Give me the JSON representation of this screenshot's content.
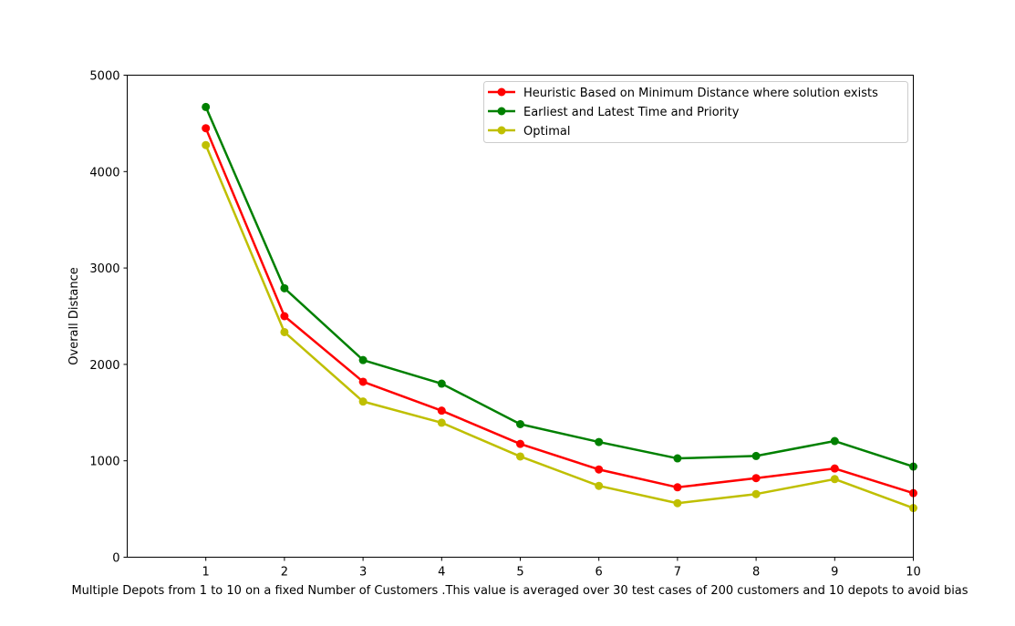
{
  "chart_data": {
    "type": "line",
    "title": "",
    "xlabel": "Multiple Depots from 1 to 10 on a fixed Number of Customers .This value is averaged over 30 test cases of 200 customers and 10 depots to avoid bias",
    "ylabel": "Overall Distance",
    "x": [
      1,
      2,
      3,
      4,
      5,
      6,
      7,
      8,
      9,
      10
    ],
    "xlim": [
      0,
      10
    ],
    "ylim": [
      0,
      5000
    ],
    "xticks": [
      "1",
      "2",
      "3",
      "4",
      "5",
      "6",
      "7",
      "8",
      "9",
      "10"
    ],
    "yticks": [
      "0",
      "1000",
      "2000",
      "3000",
      "4000",
      "5000"
    ],
    "grid": false,
    "legend_position": "top-right",
    "series": [
      {
        "name": "Heuristic Based on Minimum Distance where solution exists",
        "color": "#ff0000",
        "values": [
          4450,
          2500,
          1820,
          1520,
          1175,
          910,
          725,
          820,
          920,
          665
        ]
      },
      {
        "name": "Earliest and Latest Time and Priority",
        "color": "#008000",
        "values": [
          4670,
          2790,
          2045,
          1800,
          1380,
          1195,
          1025,
          1050,
          1205,
          940
        ]
      },
      {
        "name": "Optimal",
        "color": "#bfbf00",
        "values": [
          4275,
          2335,
          1615,
          1395,
          1045,
          740,
          560,
          655,
          810,
          510
        ]
      }
    ]
  }
}
